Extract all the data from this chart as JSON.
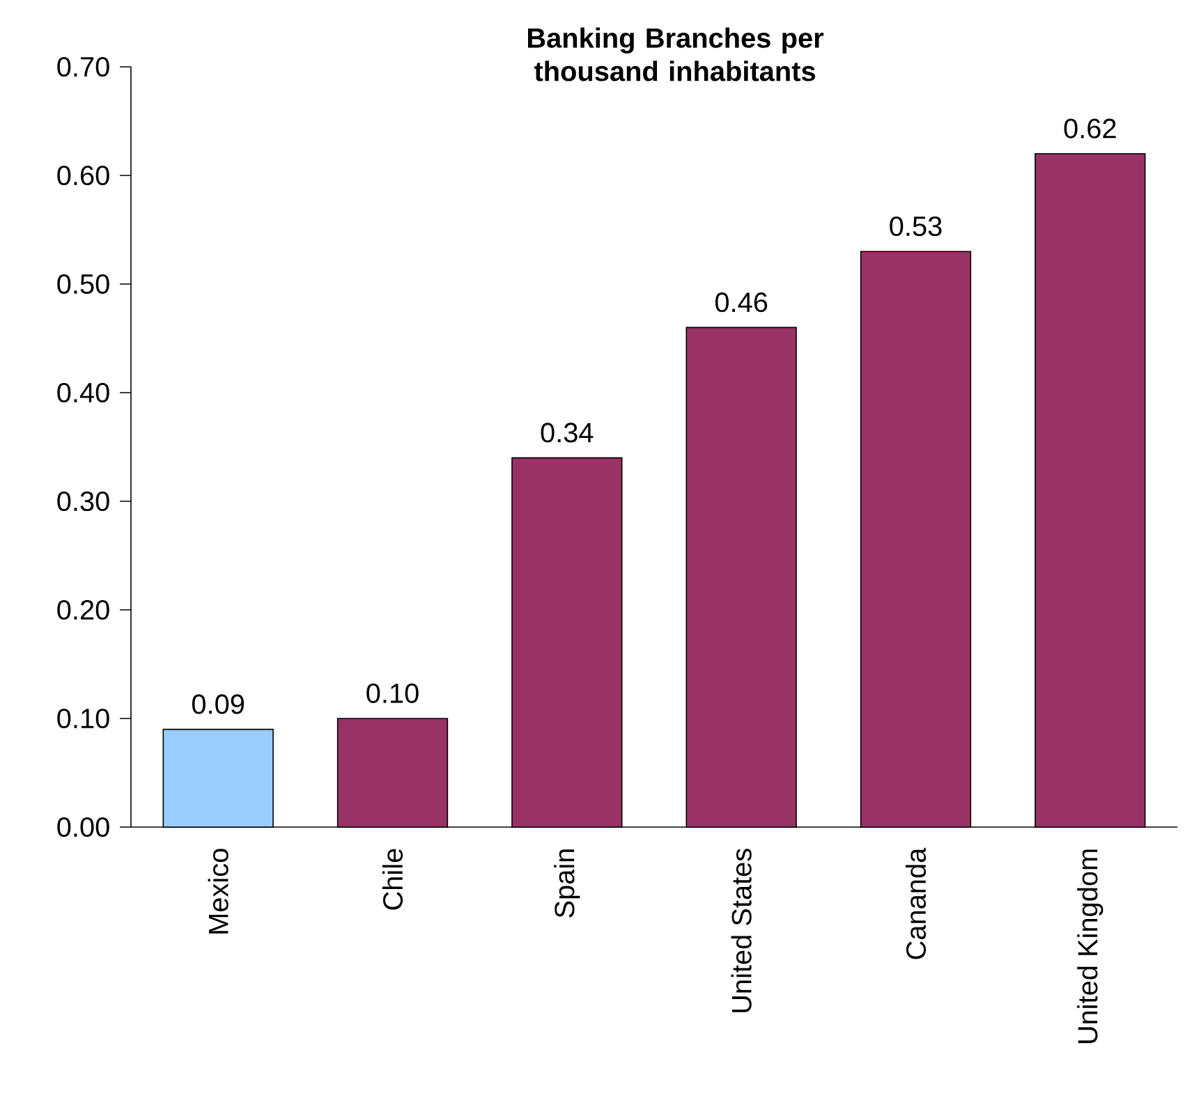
{
  "chart_data": {
    "type": "bar",
    "title": "Banking Branches per thousand inhabitants",
    "categories": [
      "Mexico",
      "Chile",
      "Spain",
      "United States",
      "Cananda",
      "United Kingdom"
    ],
    "values": [
      0.09,
      0.1,
      0.34,
      0.46,
      0.53,
      0.62
    ],
    "value_labels": [
      "0.09",
      "0.10",
      "0.34",
      "0.46",
      "0.53",
      "0.62"
    ],
    "colors": [
      "#99ccff",
      "#993366",
      "#993366",
      "#993366",
      "#993366",
      "#993366"
    ],
    "ylim": [
      0,
      0.7
    ],
    "yticks": [
      {
        "value": 0,
        "label": "0.00"
      },
      {
        "value": 0.1,
        "label": "0.10"
      },
      {
        "value": 0.2,
        "label": "0.20"
      },
      {
        "value": 0.3,
        "label": "0.30"
      },
      {
        "value": 0.4,
        "label": "0.40"
      },
      {
        "value": 0.5,
        "label": "0.50"
      },
      {
        "value": 0.6,
        "label": "0.60"
      },
      {
        "value": 0.7,
        "label": "0.70"
      }
    ]
  }
}
